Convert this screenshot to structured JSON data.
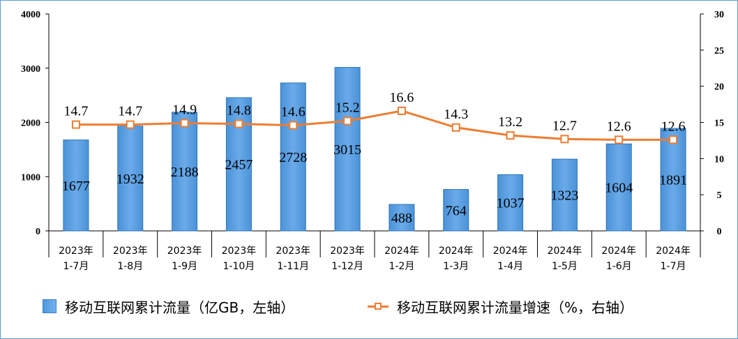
{
  "chart_data": {
    "type": "bar",
    "categories": [
      [
        "2023年",
        "1-7月"
      ],
      [
        "2023年",
        "1-8月"
      ],
      [
        "2023年",
        "1-9月"
      ],
      [
        "2023年",
        "1-10月"
      ],
      [
        "2023年",
        "1-11月"
      ],
      [
        "2023年",
        "1-12月"
      ],
      [
        "2024年",
        "1-2月"
      ],
      [
        "2024年",
        "1-3月"
      ],
      [
        "2024年",
        "1-4月"
      ],
      [
        "2024年",
        "1-5月"
      ],
      [
        "2024年",
        "1-6月"
      ],
      [
        "2024年",
        "1-7月"
      ]
    ],
    "series": [
      {
        "name": "移动互联网累计流量（亿GB，左轴）",
        "type": "bar",
        "axis": "left",
        "values": [
          1677,
          1932,
          2188,
          2457,
          2728,
          3015,
          488,
          764,
          1037,
          1323,
          1604,
          1891
        ]
      },
      {
        "name": "移动互联网累计流量增速（%，右轴）",
        "type": "line",
        "axis": "right",
        "values": [
          14.7,
          14.7,
          14.9,
          14.8,
          14.6,
          15.2,
          16.6,
          14.3,
          13.2,
          12.7,
          12.6,
          12.6
        ]
      }
    ],
    "y_left": {
      "min": 0,
      "max": 4000,
      "ticks": [
        0,
        1000,
        2000,
        3000,
        4000
      ]
    },
    "y_right": {
      "min": 0,
      "max": 30,
      "ticks": [
        0,
        5,
        10,
        15,
        20,
        25,
        30
      ]
    },
    "grid": false,
    "legend_position": "bottom",
    "colors": {
      "bar": "#5b9bd5",
      "bar_dark": "#4f97dc",
      "bar_light": "#73b3ef",
      "bar_edge": "#2e75b6",
      "line": "#ed7d31",
      "frame": "#5b9bd5"
    }
  }
}
